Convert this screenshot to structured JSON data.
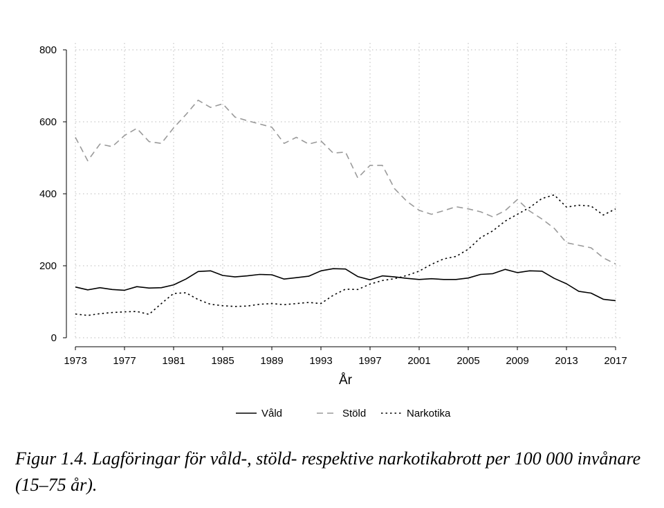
{
  "chart_data": {
    "type": "line",
    "title": "",
    "xlabel": "År",
    "ylabel": "",
    "xlim": [
      1973,
      2017
    ],
    "ylim": [
      0,
      800
    ],
    "yticks": [
      0,
      200,
      400,
      600,
      800
    ],
    "xticks": [
      1973,
      1977,
      1981,
      1985,
      1989,
      1993,
      1997,
      2001,
      2005,
      2009,
      2013,
      2017
    ],
    "grid": "dotted",
    "legend_position": "bottom",
    "x": [
      1973,
      1974,
      1975,
      1976,
      1977,
      1978,
      1979,
      1980,
      1981,
      1982,
      1983,
      1984,
      1985,
      1986,
      1987,
      1988,
      1989,
      1990,
      1991,
      1992,
      1993,
      1994,
      1995,
      1996,
      1997,
      1998,
      1999,
      2000,
      2001,
      2002,
      2003,
      2004,
      2005,
      2006,
      2007,
      2008,
      2009,
      2010,
      2011,
      2012,
      2013,
      2014,
      2015,
      2016,
      2017
    ],
    "series": [
      {
        "name": "Våld",
        "color": "#000000",
        "dash": "solid",
        "values": [
          141,
          133,
          139,
          134,
          132,
          142,
          138,
          139,
          147,
          163,
          184,
          186,
          173,
          169,
          172,
          176,
          175,
          163,
          167,
          171,
          186,
          192,
          191,
          170,
          161,
          172,
          169,
          165,
          162,
          164,
          162,
          162,
          166,
          176,
          178,
          190,
          181,
          186,
          185,
          165,
          150,
          129,
          124,
          107,
          103
        ]
      },
      {
        "name": "Stöld",
        "color": "#9a9a9a",
        "dash": "dashed",
        "values": [
          557,
          492,
          538,
          531,
          562,
          582,
          545,
          540,
          583,
          620,
          660,
          640,
          650,
          613,
          603,
          594,
          585,
          540,
          557,
          538,
          547,
          513,
          516,
          444,
          479,
          479,
          414,
          379,
          354,
          343,
          353,
          364,
          358,
          350,
          336,
          353,
          384,
          352,
          330,
          304,
          264,
          257,
          250,
          222,
          205
        ]
      },
      {
        "name": "Narkotika",
        "color": "#000000",
        "dash": "dotted",
        "values": [
          66,
          62,
          67,
          70,
          72,
          73,
          65,
          95,
          123,
          125,
          106,
          93,
          89,
          87,
          88,
          93,
          95,
          92,
          95,
          98,
          95,
          118,
          135,
          134,
          149,
          159,
          164,
          173,
          185,
          204,
          219,
          226,
          246,
          278,
          297,
          324,
          343,
          362,
          387,
          397,
          363,
          368,
          366,
          341,
          358
        ]
      }
    ]
  },
  "caption": "Figur 1.4. Lagföringar för våld-, stöld- respektive narkotikabrott per 100 000 invånare (15–75 år)."
}
